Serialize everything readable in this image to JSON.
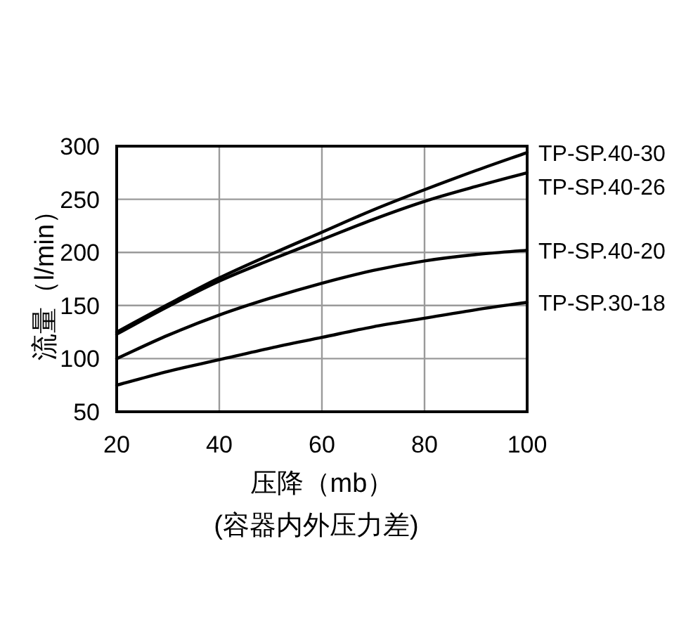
{
  "chart_data": {
    "type": "line",
    "xlabel": "压降（mb）",
    "ylabel": "流量（l/min）",
    "annotations": [
      "(容器内外压力差)"
    ],
    "x": [
      20,
      30,
      40,
      50,
      60,
      70,
      80,
      90,
      100
    ],
    "xlim": [
      20,
      100
    ],
    "ylim": [
      50,
      300
    ],
    "xticks": [
      20,
      40,
      60,
      80,
      100
    ],
    "yticks": [
      50,
      100,
      150,
      200,
      250,
      300
    ],
    "grid": true,
    "legend": false,
    "line_style": "solid",
    "series": [
      {
        "name": "TP-SP.40-30",
        "color": "#000000",
        "values": [
          125,
          151,
          176,
          198,
          219,
          240,
          259,
          277,
          294
        ]
      },
      {
        "name": "TP-SP.40-26",
        "color": "#000000",
        "values": [
          123,
          149,
          173,
          193,
          212,
          231,
          248,
          262,
          275
        ]
      },
      {
        "name": "TP-SP.40-20",
        "color": "#000000",
        "values": [
          100,
          122,
          141,
          157,
          171,
          183,
          192,
          198,
          202
        ]
      },
      {
        "name": "TP-SP.30-18",
        "color": "#000000",
        "values": [
          75,
          88,
          99,
          110,
          120,
          130,
          138,
          146,
          153
        ]
      }
    ]
  }
}
